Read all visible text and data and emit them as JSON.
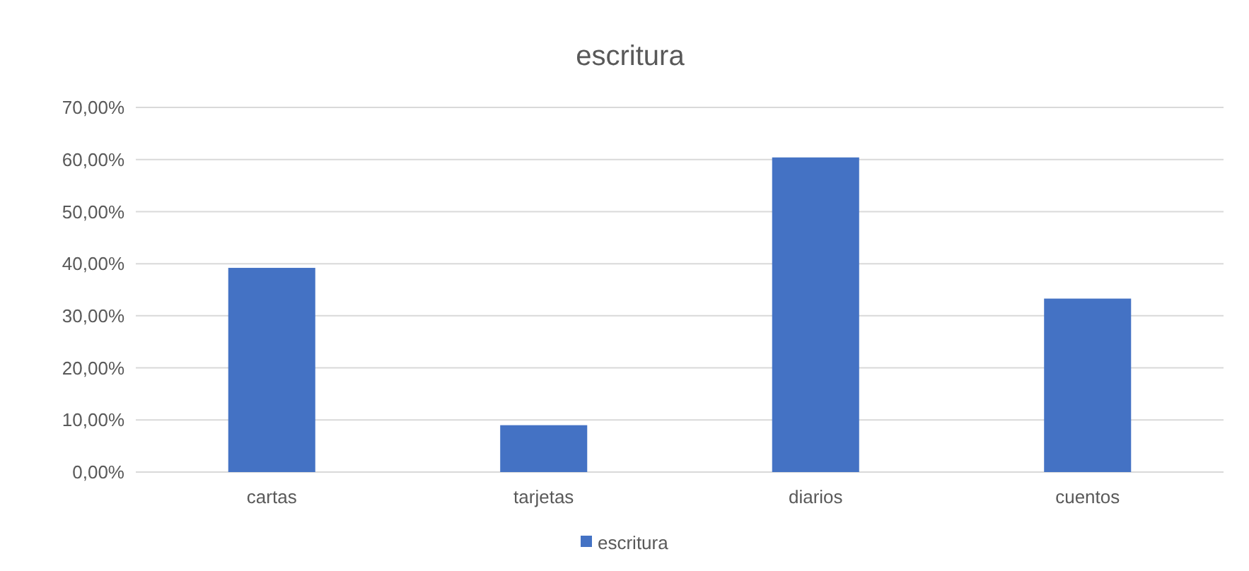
{
  "chart_data": {
    "type": "bar",
    "title": "escritura",
    "categories": [
      "cartas",
      "tarjetas",
      "diarios",
      "cuentos"
    ],
    "series": [
      {
        "name": "escritura",
        "color": "#4472c4",
        "values": [
          39.2,
          9,
          60.4,
          33.3
        ]
      }
    ],
    "ylim": [
      0,
      70
    ],
    "yticks": [
      {
        "value": 0,
        "label": "0,00%"
      },
      {
        "value": 10,
        "label": "10,00%"
      },
      {
        "value": 20,
        "label": "20,00%"
      },
      {
        "value": 30,
        "label": "30,00%"
      },
      {
        "value": 40,
        "label": "40,00%"
      },
      {
        "value": 50,
        "label": "50,00%"
      },
      {
        "value": 60,
        "label": "60,00%"
      },
      {
        "value": 70,
        "label": "70,00%"
      }
    ],
    "grid": "y",
    "legend": "bottom"
  }
}
